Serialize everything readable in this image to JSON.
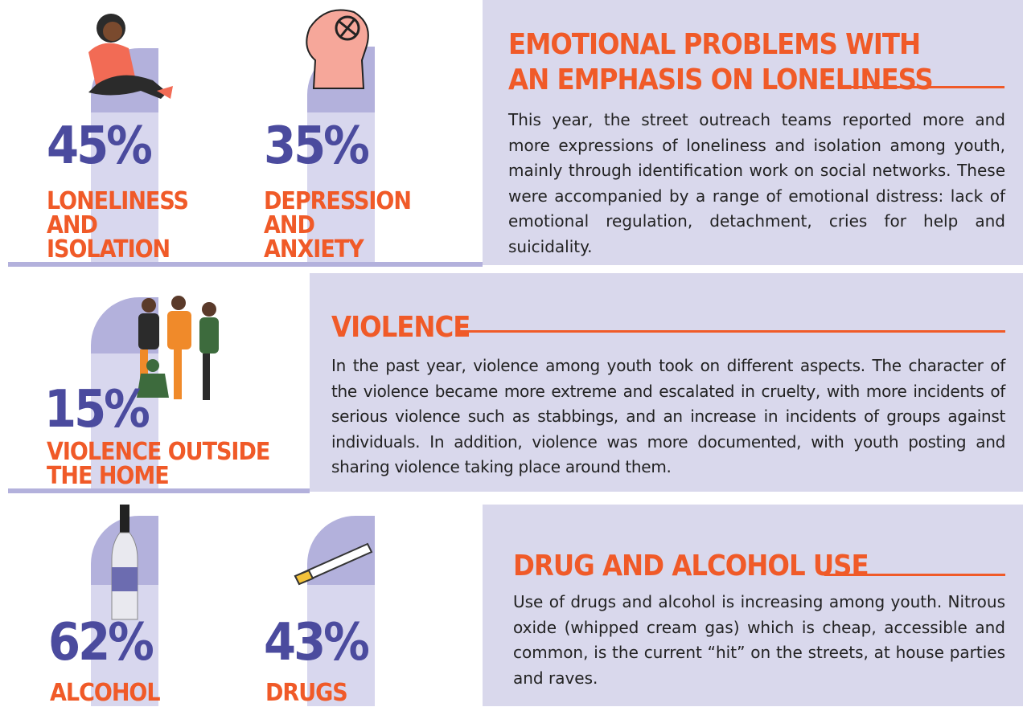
{
  "stats": [
    {
      "value": "45%",
      "label": "LONELINESS AND ISOLATION"
    },
    {
      "value": "35%",
      "label": "DEPRESSION AND ANXIETY"
    },
    {
      "value": "15%",
      "label": "VIOLENCE OUTSIDE THE HOME"
    },
    {
      "value": "62%",
      "label": "ALCOHOL"
    },
    {
      "value": "43%",
      "label": "DRUGS"
    }
  ],
  "sections": [
    {
      "title": "EMOTIONAL PROBLEMS WITH AN EMPHASIS ON LONELINESS",
      "body": "This year, the street outreach teams reported more and more expressions of loneliness and isolation among youth, mainly through identification work on social networks. These were accompanied by a range of emotional distress: lack of emotional regulation, detachment, cries for help and suicidality."
    },
    {
      "title": "VIOLENCE",
      "body": "In the past year, violence among youth took on different aspects. The character of the violence became more extreme and escalated in cruelty, with more incidents of serious violence such as stabbings, and an increase in incidents of groups against individuals. In addition, violence was more documented, with youth posting and sharing violence taking place around them."
    },
    {
      "title": "DRUG AND ALCOHOL USE",
      "body": "Use of drugs and alcohol is increasing among youth. Nitrous oxide (whipped cream gas) which is cheap, accessible and common, is the current “hit” on the streets, at house parties and raves."
    }
  ]
}
